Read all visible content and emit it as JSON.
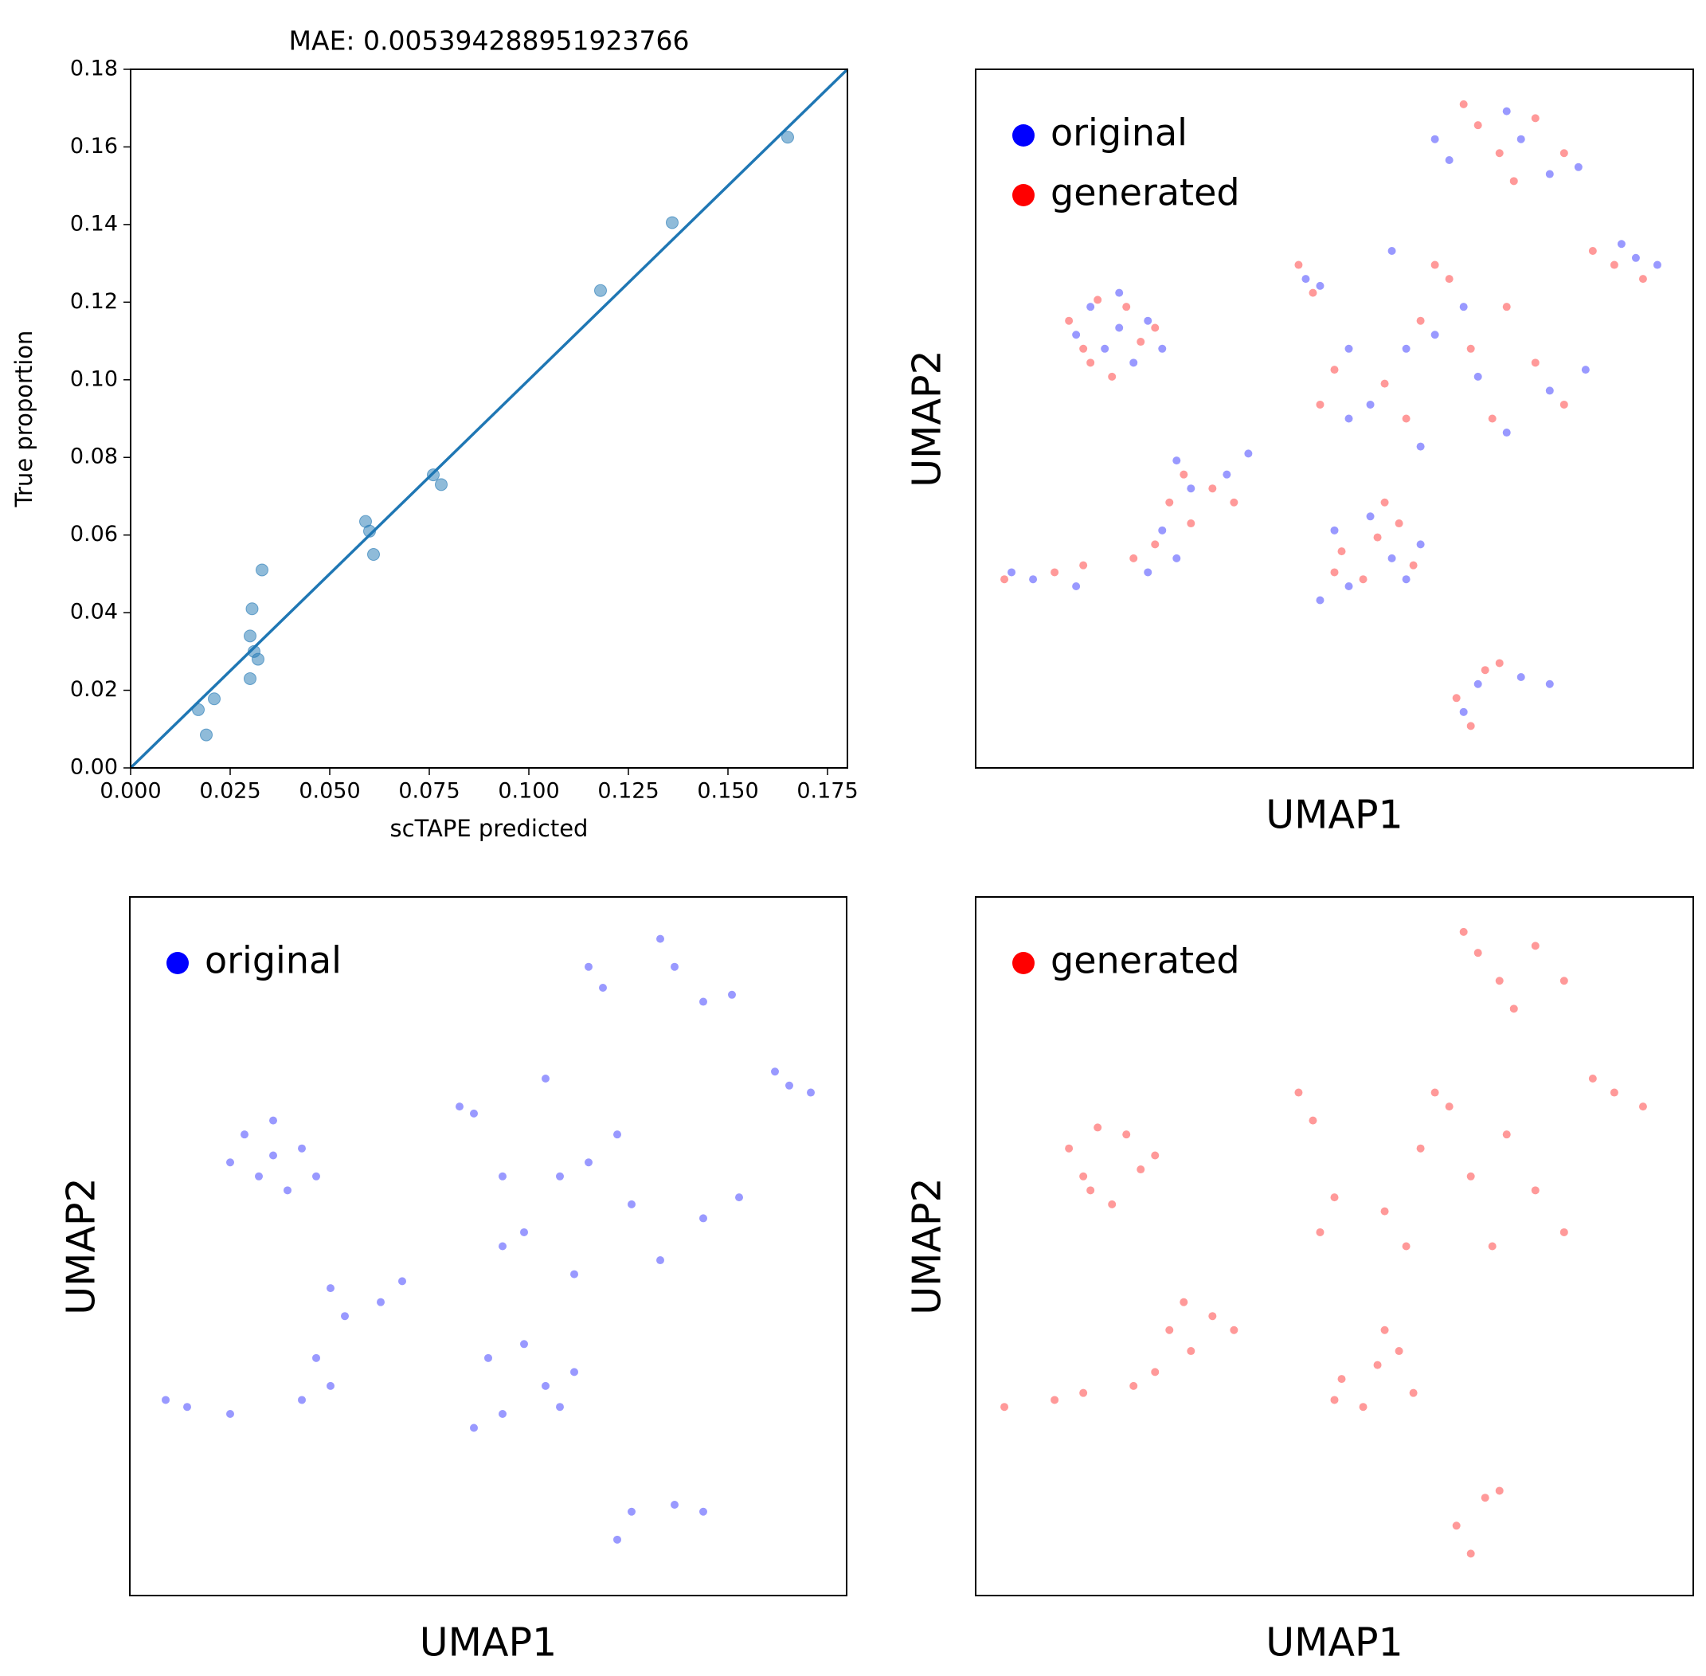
{
  "chart_data": [
    {
      "type": "scatter",
      "title": "MAE: 0.005394288951923766",
      "xlabel": "scTAPE predicted",
      "ylabel": "True proportion",
      "xlim": [
        0,
        0.18
      ],
      "ylim": [
        0,
        0.18
      ],
      "xticks": [
        {
          "value": 0,
          "label": "0.000"
        },
        {
          "value": 0.025,
          "label": "0.025"
        },
        {
          "value": 0.05,
          "label": "0.050"
        },
        {
          "value": 0.075,
          "label": "0.075"
        },
        {
          "value": 0.1,
          "label": "0.100"
        },
        {
          "value": 0.125,
          "label": "0.125"
        },
        {
          "value": 0.15,
          "label": "0.150"
        },
        {
          "value": 0.175,
          "label": "0.175"
        }
      ],
      "yticks": [
        {
          "value": 0,
          "label": "0.00"
        },
        {
          "value": 0.02,
          "label": "0.02"
        },
        {
          "value": 0.04,
          "label": "0.04"
        },
        {
          "value": 0.06,
          "label": "0.06"
        },
        {
          "value": 0.08,
          "label": "0.08"
        },
        {
          "value": 0.1,
          "label": "0.10"
        },
        {
          "value": 0.12,
          "label": "0.12"
        },
        {
          "value": 0.14,
          "label": "0.14"
        },
        {
          "value": 0.16,
          "label": "0.16"
        },
        {
          "value": 0.18,
          "label": "0.18"
        }
      ],
      "series": [
        {
          "color": "#1f77b4",
          "x": [
            0.017,
            0.019,
            0.021,
            0.03,
            0.0305,
            0.03,
            0.031,
            0.032,
            0.033,
            0.059,
            0.06,
            0.061,
            0.076,
            0.078,
            0.118,
            0.136,
            0.165
          ],
          "y": [
            0.015,
            0.0085,
            0.0178,
            0.034,
            0.041,
            0.023,
            0.03,
            0.028,
            0.051,
            0.0635,
            0.061,
            0.055,
            0.0755,
            0.073,
            0.123,
            0.1405,
            0.1625
          ]
        }
      ],
      "line": {
        "color": "#1f77b4",
        "x": [
          0,
          0.18
        ],
        "y": [
          0,
          0.18
        ]
      }
    },
    {
      "type": "scatter",
      "xlabel": "UMAP1",
      "ylabel": "UMAP2",
      "xlim": [
        0,
        100
      ],
      "ylim": [
        0,
        100
      ],
      "legend": "upper left",
      "series": [
        {
          "name": "original",
          "color": "#0000ff",
          "x": [
            16,
            20,
            24,
            18,
            22,
            14,
            26,
            20,
            28,
            30,
            26,
            28,
            24,
            35,
            38,
            5,
            8,
            14,
            46,
            48,
            50,
            55,
            58,
            62,
            52,
            48,
            60,
            68,
            70,
            76,
            80,
            64,
            66,
            76,
            80,
            74,
            84,
            92,
            95,
            90,
            60,
            55,
            68,
            80,
            62,
            74,
            52,
            58,
            70,
            64,
            52,
            85
          ],
          "y": [
            66,
            68,
            64,
            60,
            58,
            62,
            60,
            63,
            44,
            40,
            34,
            30,
            28,
            42,
            45,
            28,
            27,
            26,
            70,
            69,
            34,
            36,
            30,
            32,
            26,
            24,
            27,
            8,
            12,
            13,
            12,
            90,
            87,
            90,
            85,
            94,
            86,
            73,
            72,
            75,
            60,
            52,
            66,
            54,
            46,
            48,
            60,
            74,
            56,
            62,
            50,
            57
          ]
        },
        {
          "name": "generated",
          "color": "#ff0000",
          "x": [
            13,
            17,
            21,
            16,
            23,
            19,
            25,
            15,
            29,
            27,
            25,
            30,
            22,
            33,
            36,
            4,
            11,
            15,
            47,
            45,
            51,
            56,
            59,
            61,
            50,
            54,
            57,
            67,
            71,
            69,
            73,
            70,
            73,
            78,
            82,
            68,
            75,
            89,
            93,
            86,
            62,
            57,
            66,
            78,
            60,
            72,
            50,
            64,
            69,
            74,
            48,
            82
          ],
          "y": [
            64,
            67,
            66,
            58,
            61,
            56,
            63,
            60,
            42,
            38,
            32,
            35,
            30,
            40,
            38,
            27,
            28,
            29,
            68,
            72,
            31,
            33,
            35,
            29,
            28,
            27,
            38,
            10,
            14,
            6,
            15,
            92,
            88,
            93,
            88,
            95,
            84,
            72,
            70,
            74,
            64,
            55,
            70,
            58,
            50,
            50,
            57,
            72,
            60,
            66,
            52,
            52
          ]
        }
      ]
    },
    {
      "type": "scatter",
      "xlabel": "UMAP1",
      "ylabel": "UMAP2",
      "xlim": [
        0,
        100
      ],
      "ylim": [
        0,
        100
      ],
      "legend": "upper left",
      "series": [
        {
          "name": "original",
          "color": "#0000ff",
          "x": [
            16,
            20,
            24,
            18,
            22,
            14,
            26,
            20,
            28,
            30,
            26,
            28,
            24,
            35,
            38,
            5,
            8,
            14,
            46,
            48,
            50,
            55,
            58,
            62,
            52,
            48,
            60,
            68,
            70,
            76,
            80,
            64,
            66,
            76,
            80,
            74,
            84,
            92,
            95,
            90,
            60,
            55,
            68,
            80,
            62,
            74,
            52,
            58,
            70,
            64,
            52,
            85
          ],
          "y": [
            66,
            68,
            64,
            60,
            58,
            62,
            60,
            63,
            44,
            40,
            34,
            30,
            28,
            42,
            45,
            28,
            27,
            26,
            70,
            69,
            34,
            36,
            30,
            32,
            26,
            24,
            27,
            8,
            12,
            13,
            12,
            90,
            87,
            90,
            85,
            94,
            86,
            73,
            72,
            75,
            60,
            52,
            66,
            54,
            46,
            48,
            60,
            74,
            56,
            62,
            50,
            57
          ]
        }
      ]
    },
    {
      "type": "scatter",
      "xlabel": "UMAP1",
      "ylabel": "UMAP2",
      "xlim": [
        0,
        100
      ],
      "ylim": [
        0,
        100
      ],
      "legend": "upper left",
      "series": [
        {
          "name": "generated",
          "color": "#ff0000",
          "x": [
            13,
            17,
            21,
            16,
            23,
            19,
            25,
            15,
            29,
            27,
            25,
            30,
            22,
            33,
            36,
            4,
            11,
            15,
            47,
            45,
            51,
            56,
            59,
            61,
            50,
            54,
            57,
            67,
            71,
            69,
            73,
            70,
            73,
            78,
            82,
            68,
            75,
            89,
            93,
            86,
            62,
            57,
            66,
            78,
            60,
            72,
            50,
            64,
            69,
            74,
            48,
            82
          ],
          "y": [
            64,
            67,
            66,
            58,
            61,
            56,
            63,
            60,
            42,
            38,
            32,
            35,
            30,
            40,
            38,
            27,
            28,
            29,
            68,
            72,
            31,
            33,
            35,
            29,
            28,
            27,
            38,
            10,
            14,
            6,
            15,
            92,
            88,
            93,
            88,
            95,
            84,
            72,
            70,
            74,
            64,
            55,
            70,
            58,
            50,
            50,
            57,
            72,
            60,
            66,
            52,
            52
          ]
        }
      ]
    }
  ]
}
